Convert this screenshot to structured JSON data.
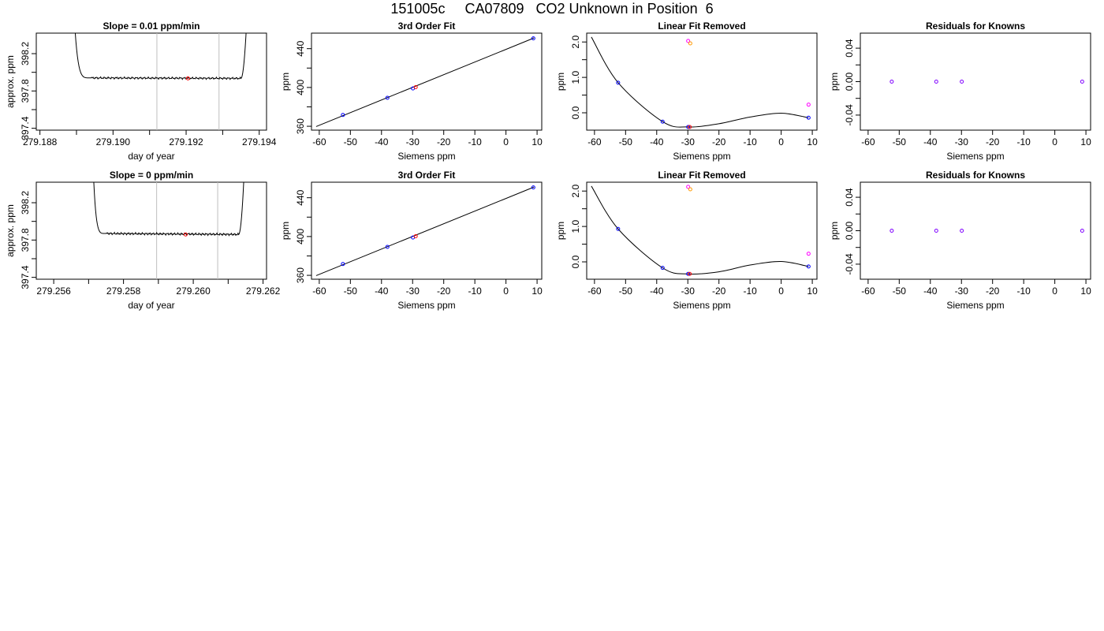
{
  "title": "151005c     CA07809   CO2 Unknown in Position  6",
  "colors": {
    "axis": "#000000",
    "curve": "#000000",
    "vline": "#bebebe",
    "known": "#0000ff",
    "unknown_a": "#ff00ff",
    "unknown_b": "#ff9900",
    "marker": "#ff0000",
    "residual": "#7f00ff"
  },
  "chart_data": [
    {
      "type": "line",
      "row": 0,
      "col": 0,
      "title": "Slope =  0.01  ppm/min",
      "xlabel": "day of year",
      "ylabel": "approx. ppm",
      "xlim": [
        279.1879,
        279.1942
      ],
      "ylim": [
        397.38,
        398.42
      ],
      "xticks": [
        279.188,
        279.19,
        279.192,
        279.194
      ],
      "xtick_labels": [
        "279.188",
        "279.190",
        "279.192",
        "279.194"
      ],
      "xminor": [
        279.189,
        279.191,
        279.193
      ],
      "yticks": [
        397.4,
        397.8,
        398.2
      ],
      "ytick_labels": [
        "397.4",
        "397.8",
        "398.2"
      ],
      "yminor": [
        397.6,
        398.0
      ],
      "vlines": [
        279.1912,
        279.1929
      ],
      "series": [
        {
          "rise": [
            279.1889,
            279.1894
          ],
          "flat": [
            279.1894,
            279.1935
          ],
          "fall": [
            279.1935,
            279.1937
          ],
          "level_start": 397.94,
          "level_end": 397.935,
          "amp": 0.012
        }
      ],
      "marker": {
        "x": 279.19205,
        "y": 397.935
      }
    },
    {
      "type": "scatter",
      "row": 0,
      "col": 1,
      "title": "3rd Order Fit",
      "xlabel": "Siemens ppm",
      "ylabel": "ppm",
      "xlim": [
        -62.5,
        11.5
      ],
      "ylim": [
        356,
        456
      ],
      "xticks": [
        -60,
        -50,
        -40,
        -30,
        -20,
        -10,
        0,
        10
      ],
      "xtick_labels": [
        "-60",
        "-50",
        "-40",
        "-30",
        "-20",
        "-10",
        "0",
        "10"
      ],
      "yticks": [
        360,
        400,
        440
      ],
      "ytick_labels": [
        "360",
        "400",
        "440"
      ],
      "yminor": [
        380,
        420
      ],
      "fit_line": {
        "x": [
          -61,
          9
        ],
        "y": [
          359.7,
          451
        ]
      },
      "points": [
        {
          "x": -52.4,
          "y": 371.7,
          "color": "known"
        },
        {
          "x": -38.1,
          "y": 389.3,
          "color": "known"
        },
        {
          "x": -29.9,
          "y": 399.0,
          "color": "known"
        },
        {
          "x": -29.0,
          "y": 400.3,
          "color": "marker"
        },
        {
          "x": 8.8,
          "y": 450.6,
          "color": "known"
        }
      ]
    },
    {
      "type": "line",
      "row": 0,
      "col": 2,
      "title": "Linear Fit Removed",
      "xlabel": "Siemens ppm",
      "ylabel": "ppm",
      "xlim": [
        -62.5,
        11.5
      ],
      "ylim": [
        -0.49,
        2.25
      ],
      "xticks": [
        -60,
        -50,
        -40,
        -30,
        -20,
        -10,
        0,
        10
      ],
      "xtick_labels": [
        "-60",
        "-50",
        "-40",
        "-30",
        "-20",
        "-10",
        "0",
        "10"
      ],
      "yticks": [
        0,
        1,
        2
      ],
      "ytick_labels": [
        "0.0",
        "1.0",
        "2.0"
      ],
      "yminor": [
        0.5,
        1.5
      ],
      "curve": {
        "x": [
          -61,
          -52.4,
          -38.1,
          -29.9,
          -20,
          -10,
          0,
          8.8
        ],
        "y": [
          2.14,
          0.85,
          -0.25,
          -0.4,
          -0.31,
          -0.12,
          -0.01,
          -0.14
        ]
      },
      "points": [
        {
          "x": -52.4,
          "y": 0.85,
          "color": "known"
        },
        {
          "x": -38.1,
          "y": -0.25,
          "color": "known"
        },
        {
          "x": -29.9,
          "y": -0.4,
          "color": "known"
        },
        {
          "x": -29.4,
          "y": -0.4,
          "color": "marker"
        },
        {
          "x": 8.8,
          "y": -0.14,
          "color": "known"
        },
        {
          "x": -29.9,
          "y": 2.03,
          "color": "unknown_a"
        },
        {
          "x": -29.2,
          "y": 1.96,
          "color": "unknown_b"
        },
        {
          "x": 8.8,
          "y": 0.23,
          "color": "unknown_a"
        }
      ]
    },
    {
      "type": "scatter",
      "row": 0,
      "col": 3,
      "title": "Residuals for Knowns",
      "xlabel": "Siemens ppm",
      "ylabel": "ppm",
      "xlim": [
        -62.5,
        11.5
      ],
      "ylim": [
        -0.058,
        0.058
      ],
      "xticks": [
        -60,
        -50,
        -40,
        -30,
        -20,
        -10,
        0,
        10
      ],
      "xtick_labels": [
        "-60",
        "-50",
        "-40",
        "-30",
        "-20",
        "-10",
        "0",
        "10"
      ],
      "yticks": [
        -0.04,
        0,
        0.04
      ],
      "ytick_labels": [
        "-0.04",
        "0.00",
        "0.04"
      ],
      "yminor": [
        -0.02,
        0.02
      ],
      "points": [
        {
          "x": -52.4,
          "y": 0,
          "color": "residual"
        },
        {
          "x": -38.1,
          "y": 0,
          "color": "residual"
        },
        {
          "x": -29.9,
          "y": 0,
          "color": "residual"
        },
        {
          "x": 8.8,
          "y": 0,
          "color": "residual"
        }
      ]
    },
    {
      "type": "line",
      "row": 1,
      "col": 0,
      "title": "Slope =  0  ppm/min",
      "xlabel": "day of year",
      "ylabel": "approx. ppm",
      "xlim": [
        279.2555,
        279.2621
      ],
      "ylim": [
        397.38,
        398.42
      ],
      "xticks": [
        279.256,
        279.258,
        279.26,
        279.262
      ],
      "xtick_labels": [
        "279.256",
        "279.258",
        "279.260",
        "279.262"
      ],
      "xminor": [
        279.257,
        279.259,
        279.261
      ],
      "yticks": [
        397.4,
        397.8,
        398.2
      ],
      "ytick_labels": [
        "397.4",
        "397.8",
        "398.2"
      ],
      "yminor": [
        397.6,
        398.0
      ],
      "vlines": [
        279.25895,
        279.2607
      ],
      "series": [
        {
          "rise": [
            279.2571,
            279.2575
          ],
          "flat": [
            279.2575,
            279.2613
          ],
          "fall": [
            279.2613,
            279.2615
          ],
          "level_start": 397.87,
          "level_end": 397.86,
          "amp": 0.013
        }
      ],
      "marker": {
        "x": 279.25978,
        "y": 397.86
      }
    },
    {
      "type": "scatter",
      "row": 1,
      "col": 1,
      "title": "3rd Order Fit",
      "xlabel": "Siemens ppm",
      "ylabel": "ppm",
      "xlim": [
        -62.5,
        11.5
      ],
      "ylim": [
        356,
        456
      ],
      "xticks": [
        -60,
        -50,
        -40,
        -30,
        -20,
        -10,
        0,
        10
      ],
      "xtick_labels": [
        "-60",
        "-50",
        "-40",
        "-30",
        "-20",
        "-10",
        "0",
        "10"
      ],
      "yticks": [
        360,
        400,
        440
      ],
      "ytick_labels": [
        "360",
        "400",
        "440"
      ],
      "yminor": [
        380,
        420
      ],
      "fit_line": {
        "x": [
          -61,
          9
        ],
        "y": [
          359.7,
          451
        ]
      },
      "points": [
        {
          "x": -52.4,
          "y": 371.7,
          "color": "known"
        },
        {
          "x": -38.1,
          "y": 389.3,
          "color": "known"
        },
        {
          "x": -29.9,
          "y": 399.0,
          "color": "known"
        },
        {
          "x": -29.0,
          "y": 400.3,
          "color": "marker"
        },
        {
          "x": 8.8,
          "y": 450.6,
          "color": "known"
        }
      ]
    },
    {
      "type": "line",
      "row": 1,
      "col": 2,
      "title": "Linear Fit Removed",
      "xlabel": "Siemens ppm",
      "ylabel": "ppm",
      "xlim": [
        -62.5,
        11.5
      ],
      "ylim": [
        -0.49,
        2.25
      ],
      "xticks": [
        -60,
        -50,
        -40,
        -30,
        -20,
        -10,
        0,
        10
      ],
      "xtick_labels": [
        "-60",
        "-50",
        "-40",
        "-30",
        "-20",
        "-10",
        "0",
        "10"
      ],
      "yticks": [
        0,
        1,
        2
      ],
      "ytick_labels": [
        "0.0",
        "1.0",
        "2.0"
      ],
      "yminor": [
        0.5,
        1.5
      ],
      "curve": {
        "x": [
          -61,
          -52.4,
          -38.1,
          -29.9,
          -20,
          -10,
          0,
          8.8
        ],
        "y": [
          2.14,
          0.93,
          -0.17,
          -0.34,
          -0.28,
          -0.09,
          0.01,
          -0.13
        ]
      },
      "points": [
        {
          "x": -52.4,
          "y": 0.93,
          "color": "known"
        },
        {
          "x": -38.1,
          "y": -0.17,
          "color": "known"
        },
        {
          "x": -29.9,
          "y": -0.34,
          "color": "known"
        },
        {
          "x": -29.4,
          "y": -0.34,
          "color": "marker"
        },
        {
          "x": 8.8,
          "y": -0.13,
          "color": "known"
        },
        {
          "x": -29.9,
          "y": 2.12,
          "color": "unknown_a"
        },
        {
          "x": -29.2,
          "y": 2.05,
          "color": "unknown_b"
        },
        {
          "x": 8.8,
          "y": 0.23,
          "color": "unknown_a"
        }
      ]
    },
    {
      "type": "scatter",
      "row": 1,
      "col": 3,
      "title": "Residuals for Knowns",
      "xlabel": "Siemens ppm",
      "ylabel": "ppm",
      "xlim": [
        -62.5,
        11.5
      ],
      "ylim": [
        -0.058,
        0.058
      ],
      "xticks": [
        -60,
        -50,
        -40,
        -30,
        -20,
        -10,
        0,
        10
      ],
      "xtick_labels": [
        "-60",
        "-50",
        "-40",
        "-30",
        "-20",
        "-10",
        "0",
        "10"
      ],
      "yticks": [
        -0.04,
        0,
        0.04
      ],
      "ytick_labels": [
        "-0.04",
        "0.00",
        "0.04"
      ],
      "yminor": [
        -0.02,
        0.02
      ],
      "points": [
        {
          "x": -52.4,
          "y": 0,
          "color": "residual"
        },
        {
          "x": -38.1,
          "y": 0,
          "color": "residual"
        },
        {
          "x": -29.9,
          "y": 0,
          "color": "residual"
        },
        {
          "x": 8.8,
          "y": 0,
          "color": "residual"
        }
      ]
    }
  ]
}
